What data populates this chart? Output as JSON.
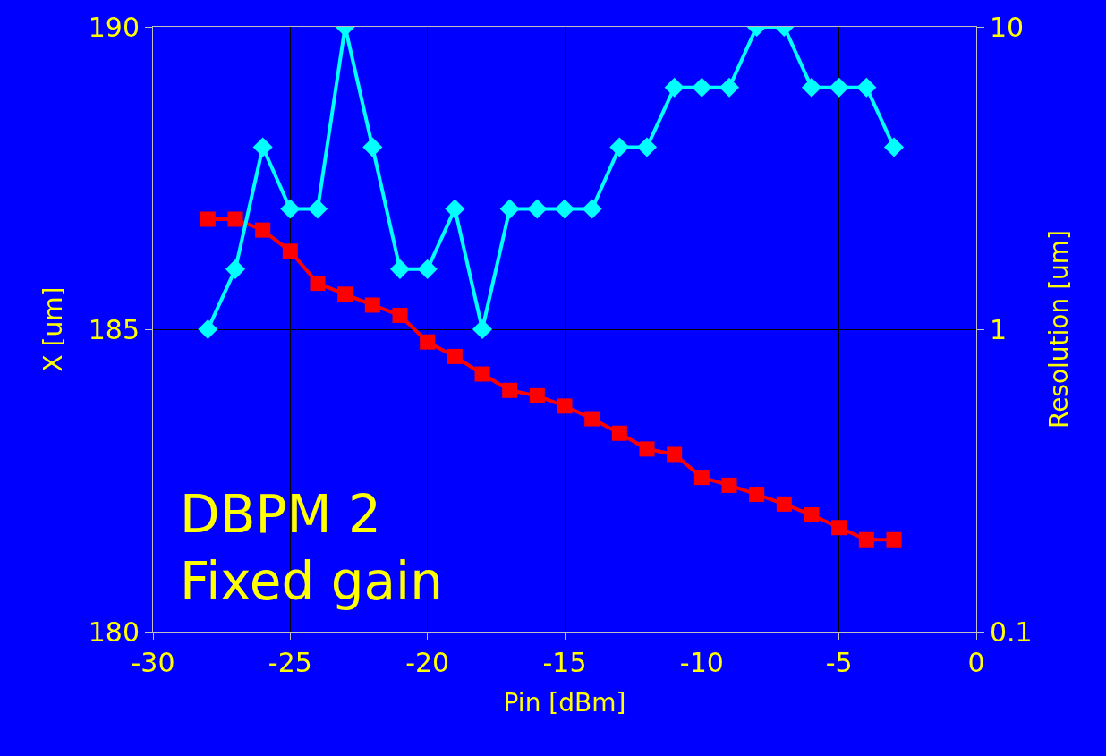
{
  "chart_data": {
    "type": "line",
    "xlabel": "Pin [dBm]",
    "ylabel": "X [um]",
    "y2label": "Resolution [um]",
    "x": [
      -28,
      -27,
      -26,
      -25,
      -24,
      -23,
      -22,
      -21,
      -20,
      -19,
      -18,
      -17,
      -16,
      -15,
      -14,
      -13,
      -12,
      -11,
      -10,
      -9,
      -8,
      -7,
      -6,
      -5,
      -4,
      -3
    ],
    "series": [
      {
        "color": "#ff0000",
        "marker": "square",
        "values": [
          186.82,
          186.82,
          186.64,
          186.29,
          185.76,
          185.58,
          185.4,
          185.23,
          184.79,
          184.55,
          184.26,
          183.99,
          183.9,
          183.73,
          183.52,
          183.28,
          183.02,
          182.93,
          182.55,
          182.42,
          182.27,
          182.11,
          181.93,
          181.72,
          181.52,
          181.52
        ]
      },
      {
        "color": "#00ffff",
        "marker": "diamond",
        "axis": "y2",
        "values": [
          1,
          1.58,
          4.0,
          2.5,
          2.5,
          10,
          4.0,
          1.58,
          1.58,
          2.5,
          1,
          2.5,
          2.5,
          2.5,
          2.5,
          4.0,
          4.0,
          6.3,
          6.3,
          6.3,
          10,
          10,
          6.3,
          6.3,
          6.3,
          4.0
        ]
      }
    ],
    "xlim": [
      -30,
      0
    ],
    "xticks": [
      -30,
      -25,
      -20,
      -15,
      -10,
      -5,
      0
    ],
    "ylim": [
      180,
      190
    ],
    "yticks": [
      180,
      185,
      190
    ],
    "y2lim": [
      0.1,
      10
    ],
    "y2ticks": [
      0.1,
      1,
      10
    ],
    "log": "y2",
    "grid": true,
    "line_style": "solid",
    "annotations": [
      "DBPM 2\nFixed gain"
    ]
  }
}
